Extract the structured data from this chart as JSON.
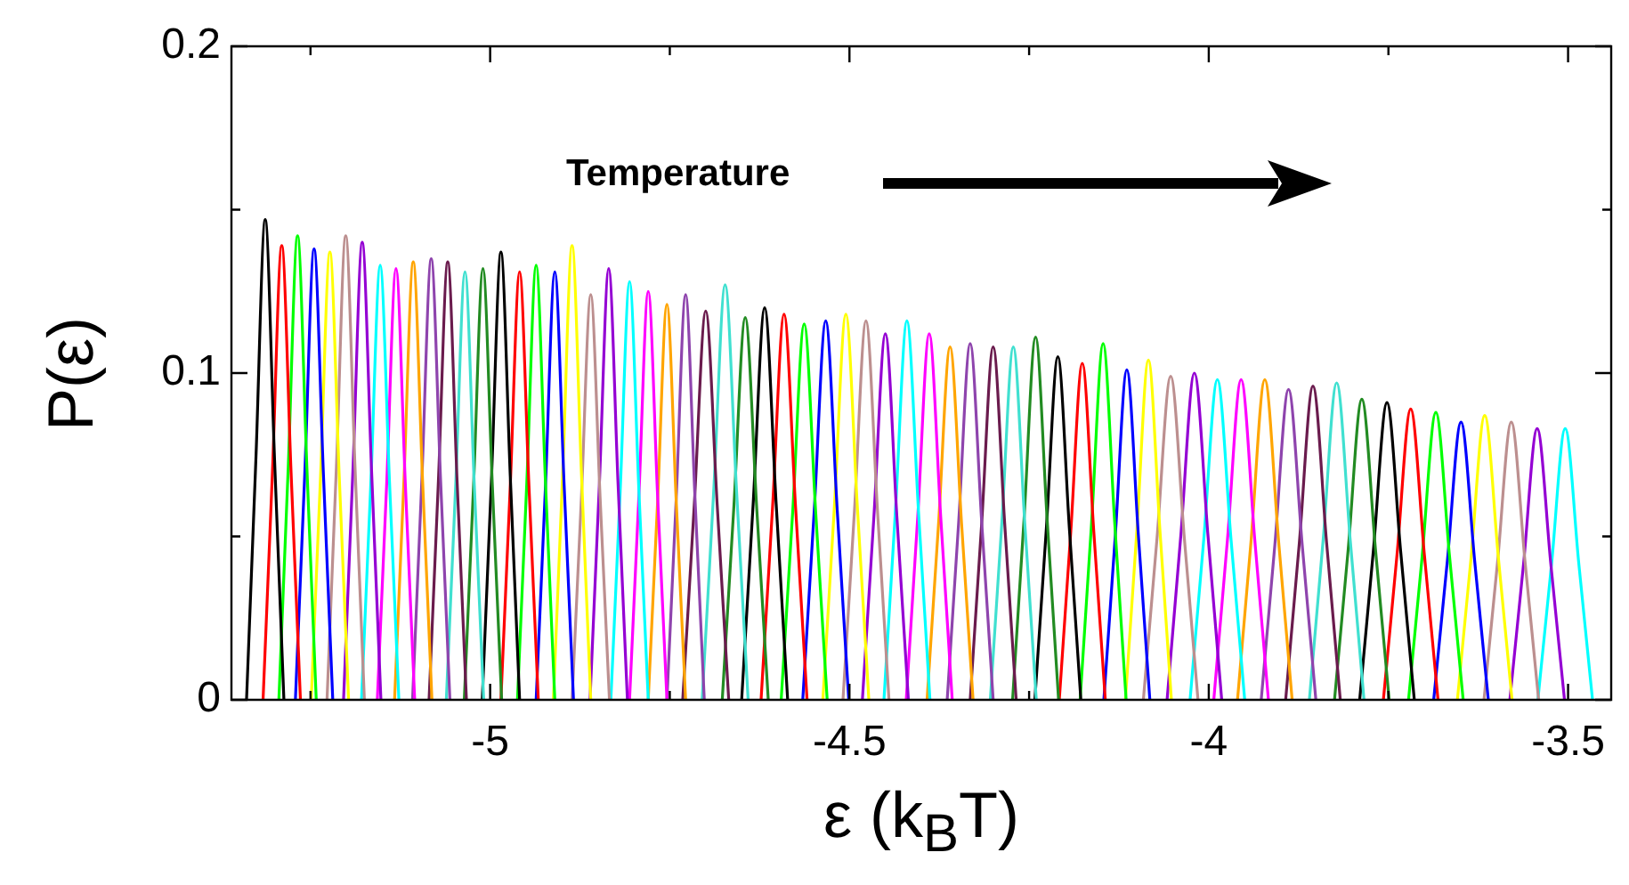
{
  "chart_data": {
    "type": "line",
    "xlabel": "ε (k$_{B}$T)",
    "ylabel": "P(ε)",
    "annotations": [
      "Temperature"
    ],
    "marker": "none",
    "line_style": "solid",
    "xlim": [
      -5.36,
      -3.44
    ],
    "xticks": [
      {
        "value": -5.25,
        "label": null
      },
      -5,
      {
        "value": -4.75,
        "label": null
      },
      -4.5,
      {
        "value": -4.25,
        "label": null
      },
      -4,
      {
        "value": -3.75,
        "label": null
      },
      -3.5
    ],
    "ylim": [
      0,
      0.2
    ],
    "yticks": [
      0,
      {
        "value": 0.05,
        "label": null
      },
      0.1,
      {
        "value": 0.15,
        "label": null
      },
      0.2
    ],
    "series": [
      {
        "color": "#000000",
        "x": [
          -5.339,
          -5.326,
          -5.313,
          -5.3,
          -5.287
        ],
        "values": [
          0,
          0.0735,
          0.147,
          0.0735,
          0
        ]
      },
      {
        "color": "#ff0000",
        "x": [
          -5.316,
          -5.303,
          -5.29,
          -5.277,
          -5.264
        ],
        "values": [
          0,
          0.0695,
          0.139,
          0.0695,
          0
        ]
      },
      {
        "color": "#00ff00",
        "x": [
          -5.294,
          -5.281,
          -5.268,
          -5.255,
          -5.242
        ],
        "values": [
          0,
          0.071,
          0.142,
          0.071,
          0
        ]
      },
      {
        "color": "#0000ff",
        "x": [
          -5.271,
          -5.258,
          -5.245,
          -5.232,
          -5.219
        ],
        "values": [
          0,
          0.069,
          0.138,
          0.069,
          0
        ]
      },
      {
        "color": "#ffff00",
        "x": [
          -5.249,
          -5.236,
          -5.223,
          -5.21,
          -5.197
        ],
        "values": [
          0,
          0.0685,
          0.137,
          0.0685,
          0
        ]
      },
      {
        "color": "#bc8f8f",
        "x": [
          -5.227,
          -5.214,
          -5.201,
          -5.188,
          -5.175
        ],
        "values": [
          0,
          0.071,
          0.142,
          0.071,
          0
        ]
      },
      {
        "color": "#9400d3",
        "x": [
          -5.204,
          -5.191,
          -5.178,
          -5.165,
          -5.152
        ],
        "values": [
          0,
          0.07,
          0.14,
          0.07,
          0
        ]
      },
      {
        "color": "#00ffff",
        "x": [
          -5.179,
          -5.166,
          -5.153,
          -5.14,
          -5.127
        ],
        "values": [
          0,
          0.0665,
          0.133,
          0.0665,
          0
        ]
      },
      {
        "color": "#ff00ff",
        "x": [
          -5.157,
          -5.144,
          -5.131,
          -5.118,
          -5.105
        ],
        "values": [
          0,
          0.066,
          0.132,
          0.066,
          0
        ]
      },
      {
        "color": "#ffa500",
        "x": [
          -5.133,
          -5.12,
          -5.107,
          -5.094,
          -5.081
        ],
        "values": [
          0,
          0.067,
          0.134,
          0.067,
          0
        ]
      },
      {
        "color": "#8e44ad",
        "x": [
          -5.108,
          -5.095,
          -5.082,
          -5.069,
          -5.056
        ],
        "values": [
          0,
          0.0675,
          0.135,
          0.0675,
          0
        ]
      },
      {
        "color": "#6a1b4d",
        "x": [
          -5.085,
          -5.072,
          -5.059,
          -5.046,
          -5.033
        ],
        "values": [
          0,
          0.067,
          0.134,
          0.067,
          0
        ]
      },
      {
        "color": "#40e0d0",
        "x": [
          -5.061,
          -5.048,
          -5.035,
          -5.022,
          -5.009
        ],
        "values": [
          0,
          0.0655,
          0.131,
          0.0655,
          0
        ]
      },
      {
        "color": "#228b22",
        "x": [
          -5.036,
          -5.023,
          -5.01,
          -4.997,
          -4.984
        ],
        "values": [
          0,
          0.066,
          0.132,
          0.066,
          0
        ]
      },
      {
        "color": "#000000",
        "x": [
          -5.011,
          -4.998,
          -4.985,
          -4.972,
          -4.959
        ],
        "values": [
          0,
          0.0685,
          0.137,
          0.0685,
          0
        ]
      },
      {
        "color": "#ff0000",
        "x": [
          -4.985,
          -4.972,
          -4.959,
          -4.946,
          -4.933
        ],
        "values": [
          0,
          0.0655,
          0.131,
          0.0655,
          0
        ]
      },
      {
        "color": "#00ff00",
        "x": [
          -4.962,
          -4.949,
          -4.936,
          -4.923,
          -4.91
        ],
        "values": [
          0,
          0.0665,
          0.133,
          0.0665,
          0
        ]
      },
      {
        "color": "#0000ff",
        "x": [
          -4.936,
          -4.923,
          -4.91,
          -4.897,
          -4.884
        ],
        "values": [
          0,
          0.0655,
          0.131,
          0.0655,
          0
        ]
      },
      {
        "color": "#ffff00",
        "x": [
          -4.912,
          -4.899,
          -4.886,
          -4.873,
          -4.86
        ],
        "values": [
          0,
          0.0695,
          0.139,
          0.0695,
          0
        ]
      },
      {
        "color": "#bc8f8f",
        "x": [
          -4.886,
          -4.873,
          -4.86,
          -4.847,
          -4.834
        ],
        "values": [
          0,
          0.062,
          0.124,
          0.062,
          0
        ]
      },
      {
        "color": "#9400d3",
        "x": [
          -4.861,
          -4.848,
          -4.835,
          -4.822,
          -4.809
        ],
        "values": [
          0,
          0.066,
          0.132,
          0.066,
          0
        ]
      },
      {
        "color": "#00ffff",
        "x": [
          -4.832,
          -4.819,
          -4.806,
          -4.793,
          -4.78
        ],
        "values": [
          0,
          0.064,
          0.128,
          0.064,
          0
        ]
      },
      {
        "color": "#ff00ff",
        "x": [
          -4.806,
          -4.793,
          -4.78,
          -4.767,
          -4.754
        ],
        "values": [
          0,
          0.0625,
          0.125,
          0.0625,
          0
        ]
      },
      {
        "color": "#ffa500",
        "x": [
          -4.78,
          -4.767,
          -4.754,
          -4.741,
          -4.728
        ],
        "values": [
          0,
          0.0605,
          0.121,
          0.0605,
          0
        ]
      },
      {
        "color": "#8e44ad",
        "x": [
          -4.754,
          -4.741,
          -4.728,
          -4.715,
          -4.702
        ],
        "values": [
          0,
          0.062,
          0.124,
          0.062,
          0
        ]
      },
      {
        "color": "#6a1b4d",
        "x": [
          -4.732,
          -4.716,
          -4.7,
          -4.684,
          -4.668
        ],
        "values": [
          0,
          0.0595,
          0.119,
          0.0595,
          0
        ]
      },
      {
        "color": "#40e0d0",
        "x": [
          -4.705,
          -4.689,
          -4.673,
          -4.657,
          -4.641
        ],
        "values": [
          0,
          0.0635,
          0.127,
          0.0635,
          0
        ]
      },
      {
        "color": "#228b22",
        "x": [
          -4.677,
          -4.661,
          -4.645,
          -4.629,
          -4.613
        ],
        "values": [
          0,
          0.0585,
          0.117,
          0.0585,
          0
        ]
      },
      {
        "color": "#000000",
        "x": [
          -4.65,
          -4.634,
          -4.618,
          -4.602,
          -4.586
        ],
        "values": [
          0,
          0.06,
          0.12,
          0.06,
          0
        ]
      },
      {
        "color": "#ff0000",
        "x": [
          -4.623,
          -4.607,
          -4.591,
          -4.575,
          -4.559
        ],
        "values": [
          0,
          0.059,
          0.118,
          0.059,
          0
        ]
      },
      {
        "color": "#00ff00",
        "x": [
          -4.595,
          -4.579,
          -4.563,
          -4.547,
          -4.531
        ],
        "values": [
          0,
          0.0575,
          0.115,
          0.0575,
          0
        ]
      },
      {
        "color": "#0000ff",
        "x": [
          -4.565,
          -4.549,
          -4.533,
          -4.517,
          -4.501
        ],
        "values": [
          0,
          0.058,
          0.116,
          0.058,
          0
        ]
      },
      {
        "color": "#ffff00",
        "x": [
          -4.537,
          -4.521,
          -4.505,
          -4.489,
          -4.473
        ],
        "values": [
          0,
          0.059,
          0.118,
          0.059,
          0
        ]
      },
      {
        "color": "#bc8f8f",
        "x": [
          -4.509,
          -4.493,
          -4.477,
          -4.461,
          -4.445
        ],
        "values": [
          0,
          0.058,
          0.116,
          0.058,
          0
        ]
      },
      {
        "color": "#9400d3",
        "x": [
          -4.482,
          -4.466,
          -4.45,
          -4.434,
          -4.418
        ],
        "values": [
          0,
          0.056,
          0.112,
          0.056,
          0
        ]
      },
      {
        "color": "#00ffff",
        "x": [
          -4.452,
          -4.436,
          -4.42,
          -4.404,
          -4.388
        ],
        "values": [
          0,
          0.058,
          0.116,
          0.058,
          0
        ]
      },
      {
        "color": "#ff00ff",
        "x": [
          -4.421,
          -4.405,
          -4.389,
          -4.373,
          -4.357
        ],
        "values": [
          0,
          0.056,
          0.112,
          0.056,
          0
        ]
      },
      {
        "color": "#ffa500",
        "x": [
          -4.392,
          -4.376,
          -4.36,
          -4.344,
          -4.328
        ],
        "values": [
          0,
          0.054,
          0.108,
          0.054,
          0
        ]
      },
      {
        "color": "#8e44ad",
        "x": [
          -4.364,
          -4.348,
          -4.332,
          -4.316,
          -4.3
        ],
        "values": [
          0,
          0.0545,
          0.109,
          0.0545,
          0
        ]
      },
      {
        "color": "#6a1b4d",
        "x": [
          -4.332,
          -4.316,
          -4.3,
          -4.284,
          -4.268
        ],
        "values": [
          0,
          0.054,
          0.108,
          0.054,
          0
        ]
      },
      {
        "color": "#40e0d0",
        "x": [
          -4.304,
          -4.288,
          -4.272,
          -4.256,
          -4.24
        ],
        "values": [
          0,
          0.054,
          0.108,
          0.054,
          0
        ]
      },
      {
        "color": "#228b22",
        "x": [
          -4.273,
          -4.257,
          -4.241,
          -4.225,
          -4.209
        ],
        "values": [
          0,
          0.0555,
          0.111,
          0.0555,
          0
        ]
      },
      {
        "color": "#000000",
        "x": [
          -4.242,
          -4.226,
          -4.21,
          -4.194,
          -4.178
        ],
        "values": [
          0,
          0.0525,
          0.105,
          0.0525,
          0
        ]
      },
      {
        "color": "#ff0000",
        "x": [
          -4.208,
          -4.192,
          -4.176,
          -4.16,
          -4.144
        ],
        "values": [
          0,
          0.0515,
          0.103,
          0.0515,
          0
        ]
      },
      {
        "color": "#00ff00",
        "x": [
          -4.179,
          -4.163,
          -4.147,
          -4.131,
          -4.115
        ],
        "values": [
          0,
          0.0545,
          0.109,
          0.0545,
          0
        ]
      },
      {
        "color": "#0000ff",
        "x": [
          -4.146,
          -4.13,
          -4.114,
          -4.098,
          -4.082
        ],
        "values": [
          0,
          0.0505,
          0.101,
          0.0505,
          0
        ]
      },
      {
        "color": "#ffff00",
        "x": [
          -4.116,
          -4.1,
          -4.084,
          -4.068,
          -4.052
        ],
        "values": [
          0,
          0.052,
          0.104,
          0.052,
          0
        ]
      },
      {
        "color": "#bc8f8f",
        "x": [
          -4.091,
          -4.072,
          -4.053,
          -4.034,
          -4.015
        ],
        "values": [
          0,
          0.0495,
          0.099,
          0.0495,
          0
        ]
      },
      {
        "color": "#9400d3",
        "x": [
          -4.058,
          -4.039,
          -4.02,
          -4.001,
          -3.982
        ],
        "values": [
          0,
          0.05,
          0.1,
          0.05,
          0
        ]
      },
      {
        "color": "#00ffff",
        "x": [
          -4.026,
          -4.007,
          -3.988,
          -3.969,
          -3.95
        ],
        "values": [
          0,
          0.049,
          0.098,
          0.049,
          0
        ]
      },
      {
        "color": "#ff00ff",
        "x": [
          -3.993,
          -3.974,
          -3.955,
          -3.936,
          -3.917
        ],
        "values": [
          0,
          0.049,
          0.098,
          0.049,
          0
        ]
      },
      {
        "color": "#ffa500",
        "x": [
          -3.96,
          -3.941,
          -3.922,
          -3.903,
          -3.884
        ],
        "values": [
          0,
          0.049,
          0.098,
          0.049,
          0
        ]
      },
      {
        "color": "#8e44ad",
        "x": [
          -3.927,
          -3.908,
          -3.889,
          -3.87,
          -3.851
        ],
        "values": [
          0,
          0.0475,
          0.095,
          0.0475,
          0
        ]
      },
      {
        "color": "#6a1b4d",
        "x": [
          -3.893,
          -3.874,
          -3.855,
          -3.836,
          -3.817
        ],
        "values": [
          0,
          0.048,
          0.096,
          0.048,
          0
        ]
      },
      {
        "color": "#40e0d0",
        "x": [
          -3.86,
          -3.841,
          -3.822,
          -3.803,
          -3.784
        ],
        "values": [
          0,
          0.0485,
          0.097,
          0.0485,
          0
        ]
      },
      {
        "color": "#228b22",
        "x": [
          -3.825,
          -3.806,
          -3.787,
          -3.768,
          -3.749
        ],
        "values": [
          0,
          0.046,
          0.092,
          0.046,
          0
        ]
      },
      {
        "color": "#000000",
        "x": [
          -3.79,
          -3.771,
          -3.752,
          -3.733,
          -3.714
        ],
        "values": [
          0,
          0.0455,
          0.091,
          0.0455,
          0
        ]
      },
      {
        "color": "#ff0000",
        "x": [
          -3.757,
          -3.738,
          -3.719,
          -3.7,
          -3.681
        ],
        "values": [
          0,
          0.0445,
          0.089,
          0.0445,
          0
        ]
      },
      {
        "color": "#00ff00",
        "x": [
          -3.722,
          -3.703,
          -3.684,
          -3.665,
          -3.646
        ],
        "values": [
          0,
          0.044,
          0.088,
          0.044,
          0
        ]
      },
      {
        "color": "#0000ff",
        "x": [
          -3.687,
          -3.668,
          -3.649,
          -3.63,
          -3.611
        ],
        "values": [
          0,
          0.0425,
          0.085,
          0.0425,
          0
        ]
      },
      {
        "color": "#ffff00",
        "x": [
          -3.654,
          -3.635,
          -3.616,
          -3.597,
          -3.578
        ],
        "values": [
          0,
          0.0435,
          0.087,
          0.0435,
          0
        ]
      },
      {
        "color": "#bc8f8f",
        "x": [
          -3.617,
          -3.598,
          -3.579,
          -3.56,
          -3.541
        ],
        "values": [
          0,
          0.0425,
          0.085,
          0.0425,
          0
        ]
      },
      {
        "color": "#9400d3",
        "x": [
          -3.581,
          -3.562,
          -3.543,
          -3.524,
          -3.505
        ],
        "values": [
          0,
          0.0415,
          0.083,
          0.0415,
          0
        ]
      },
      {
        "color": "#00ffff",
        "x": [
          -3.542,
          -3.523,
          -3.504,
          -3.485,
          -3.466
        ],
        "values": [
          0,
          0.0415,
          0.083,
          0.0415,
          0
        ]
      }
    ]
  }
}
